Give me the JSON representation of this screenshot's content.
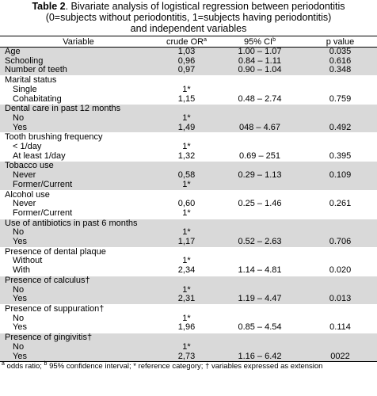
{
  "caption": {
    "label": "Table 2",
    "line1": ". Bivariate analysis of logistical regression between periodontitis",
    "line2": "(0=subjects without periodontitis, 1=subjects having periodontitis)",
    "line3": "and independent variables"
  },
  "headers": {
    "variable": "Variable",
    "or": "crude OR",
    "or_sup": "a",
    "ci": "95% CI",
    "ci_sup": "b",
    "p": "p value"
  },
  "rows": [
    {
      "label": "Age",
      "or": "1,03",
      "ci": "1.00 – 1.07",
      "p": "0.035"
    },
    {
      "label": "Schooling",
      "or": "0,96",
      "ci": "0.84 – 1.11",
      "p": "0.616"
    },
    {
      "label": "Number of teeth",
      "or": "0,97",
      "ci": "0.90 – 1.04",
      "p": "0.348"
    },
    {
      "label": "Marital status",
      "or": "",
      "ci": "",
      "p": ""
    },
    {
      "label": "Single",
      "or": "1*",
      "ci": "",
      "p": ""
    },
    {
      "label": "Cohabitating",
      "or": "1,15",
      "ci": "0.48 – 2.74",
      "p": "0.759"
    },
    {
      "label": "Dental care in past 12 months",
      "or": "",
      "ci": "",
      "p": ""
    },
    {
      "label": "No",
      "or": "1*",
      "ci": "",
      "p": ""
    },
    {
      "label": "Yes",
      "or": "1,49",
      "ci": "048 – 4.67",
      "p": "0.492"
    },
    {
      "label": "Tooth brushing frequency",
      "or": "",
      "ci": "",
      "p": ""
    },
    {
      "label": "< 1/day",
      "or": "1*",
      "ci": "",
      "p": ""
    },
    {
      "label": "At least 1/day",
      "or": "1,32",
      "ci": "0.69 – 251",
      "p": "0.395"
    },
    {
      "label": "Tobacco use",
      "or": "",
      "ci": "",
      "p": ""
    },
    {
      "label": "Never",
      "or": "0,58",
      "ci": "0.29 – 1.13",
      "p": "0.109"
    },
    {
      "label": "Former/Current",
      "or": "1*",
      "ci": "",
      "p": ""
    },
    {
      "label": "Alcohol use",
      "or": "",
      "ci": "",
      "p": ""
    },
    {
      "label": "Never",
      "or": "0,60",
      "ci": "0.25 – 1.46",
      "p": "0.261"
    },
    {
      "label": "Former/Current",
      "or": "1*",
      "ci": "",
      "p": ""
    },
    {
      "label": "Use of antibiotics in past 6 months",
      "or": "",
      "ci": "",
      "p": ""
    },
    {
      "label": "No",
      "or": "1*",
      "ci": "",
      "p": ""
    },
    {
      "label": "Yes",
      "or": "1,17",
      "ci": "0.52 – 2.63",
      "p": "0.706"
    },
    {
      "label": "Presence of dental plaque",
      "or": "",
      "ci": "",
      "p": ""
    },
    {
      "label": "Without",
      "or": "1*",
      "ci": "",
      "p": ""
    },
    {
      "label": "With",
      "or": "2,34",
      "ci": "1.14 – 4.81",
      "p": "0.020"
    },
    {
      "label": "Presence of calculus†",
      "or": "",
      "ci": "",
      "p": ""
    },
    {
      "label": "No",
      "or": "1*",
      "ci": "",
      "p": ""
    },
    {
      "label": "Yes",
      "or": "2,31",
      "ci": "1.19 – 4.47",
      "p": "0.013"
    },
    {
      "label": "Presence of suppuration†",
      "or": "",
      "ci": "",
      "p": ""
    },
    {
      "label": "No",
      "or": "1*",
      "ci": "",
      "p": ""
    },
    {
      "label": "Yes",
      "or": "1,96",
      "ci": "0.85 – 4.54",
      "p": "0.114"
    },
    {
      "label": "Presence of gingivitis†",
      "or": "",
      "ci": "",
      "p": ""
    },
    {
      "label": "No",
      "or": "1*",
      "ci": "",
      "p": ""
    },
    {
      "label": "Yes",
      "or": "2,73",
      "ci": "1.16 – 6.42",
      "p": "0022"
    }
  ],
  "footnote": {
    "sup_a": "a",
    "text_a": " odds ratio; ",
    "sup_b": "b",
    "text_b": " 95% confidence interval; * reference category; † variables expressed as extension"
  },
  "colors": {
    "shade": "#d9d9d9"
  }
}
